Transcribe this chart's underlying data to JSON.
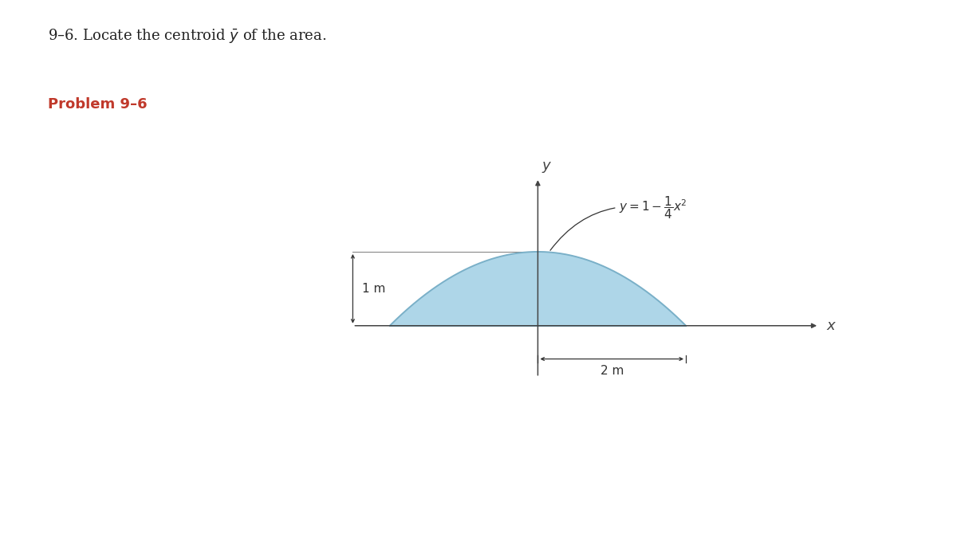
{
  "title_text": "9–6. Locate the centroid $\\bar{y}$ of the area.",
  "problem_label": "Problem 9–6",
  "fill_color": "#aed6e8",
  "fill_alpha": 1.0,
  "curve_color": "#7ab0c8",
  "axis_color": "#444444",
  "line_color": "#888888",
  "annotation_color": "#333333",
  "x_range": [
    -3.0,
    4.5
  ],
  "y_range": [
    -1.0,
    2.2
  ],
  "curve_label": "$y = 1 - \\dfrac{1}{4}x^2$",
  "dim_label_1m": "1 m",
  "dim_label_2m": "2 m",
  "background_color": "#ffffff",
  "title_color": "#222222",
  "problem_color": "#c0392b"
}
